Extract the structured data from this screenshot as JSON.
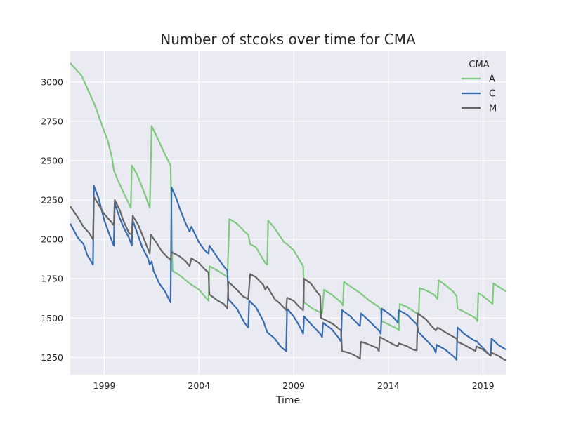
{
  "chart_data": {
    "type": "line",
    "title": "Number of stcoks over time for CMA",
    "xlabel": "Time",
    "ylabel": "",
    "xlim": [
      1997.2,
      2020.2
    ],
    "ylim": [
      1140,
      3200
    ],
    "xticks": [
      1999,
      2004,
      2009,
      2014,
      2019
    ],
    "yticks": [
      1250,
      1500,
      1750,
      2000,
      2250,
      2500,
      2750,
      3000
    ],
    "grid": true,
    "legend": {
      "title": "CMA",
      "placement": "top-right"
    },
    "series": [
      {
        "name": "A",
        "color": "#7fc97f",
        "points": [
          [
            1997.2,
            3120
          ],
          [
            1997.8,
            3040
          ],
          [
            1998.4,
            2880
          ],
          [
            1998.6,
            2820
          ],
          [
            1998.8,
            2750
          ],
          [
            1999.2,
            2620
          ],
          [
            1999.4,
            2520
          ],
          [
            1999.5,
            2440
          ],
          [
            1999.7,
            2380
          ],
          [
            2000.0,
            2300
          ],
          [
            2000.4,
            2200
          ],
          [
            2000.45,
            2470
          ],
          [
            2000.7,
            2420
          ],
          [
            2001.1,
            2300
          ],
          [
            2001.4,
            2200
          ],
          [
            2001.5,
            2720
          ],
          [
            2001.9,
            2620
          ],
          [
            2002.2,
            2540
          ],
          [
            2002.5,
            2470
          ],
          [
            2002.6,
            1800
          ],
          [
            2003.0,
            1770
          ],
          [
            2003.5,
            1720
          ],
          [
            2004.0,
            1680
          ],
          [
            2004.5,
            1610
          ],
          [
            2004.55,
            1830
          ],
          [
            2005.0,
            1800
          ],
          [
            2005.5,
            1760
          ],
          [
            2005.6,
            2130
          ],
          [
            2006.0,
            2100
          ],
          [
            2006.4,
            2050
          ],
          [
            2006.6,
            2030
          ],
          [
            2006.7,
            1970
          ],
          [
            2007.0,
            1950
          ],
          [
            2007.5,
            1850
          ],
          [
            2007.6,
            1840
          ],
          [
            2007.65,
            2120
          ],
          [
            2008.0,
            2070
          ],
          [
            2008.5,
            1980
          ],
          [
            2008.7,
            1965
          ],
          [
            2009.0,
            1930
          ],
          [
            2009.4,
            1850
          ],
          [
            2009.5,
            1830
          ],
          [
            2009.55,
            1600
          ],
          [
            2010.0,
            1560
          ],
          [
            2010.5,
            1530
          ],
          [
            2010.6,
            1680
          ],
          [
            2011.0,
            1650
          ],
          [
            2011.5,
            1600
          ],
          [
            2011.6,
            1580
          ],
          [
            2011.65,
            1730
          ],
          [
            2012.0,
            1700
          ],
          [
            2012.5,
            1660
          ],
          [
            2013.0,
            1610
          ],
          [
            2013.5,
            1570
          ],
          [
            2013.6,
            1550
          ],
          [
            2013.65,
            1480
          ],
          [
            2014.0,
            1460
          ],
          [
            2014.5,
            1430
          ],
          [
            2014.55,
            1420
          ],
          [
            2014.6,
            1590
          ],
          [
            2015.0,
            1570
          ],
          [
            2015.5,
            1530
          ],
          [
            2015.6,
            1520
          ],
          [
            2015.65,
            1690
          ],
          [
            2016.0,
            1675
          ],
          [
            2016.4,
            1650
          ],
          [
            2016.6,
            1620
          ],
          [
            2016.65,
            1740
          ],
          [
            2017.0,
            1710
          ],
          [
            2017.4,
            1670
          ],
          [
            2017.6,
            1640
          ],
          [
            2017.65,
            1560
          ],
          [
            2018.0,
            1540
          ],
          [
            2018.3,
            1520
          ],
          [
            2018.6,
            1500
          ],
          [
            2018.7,
            1480
          ],
          [
            2018.75,
            1660
          ],
          [
            2019.0,
            1640
          ],
          [
            2019.4,
            1600
          ],
          [
            2019.5,
            1590
          ],
          [
            2019.55,
            1720
          ],
          [
            2019.8,
            1700
          ],
          [
            2020.2,
            1670
          ]
        ]
      },
      {
        "name": "C",
        "color": "#386cb0",
        "points": [
          [
            1997.2,
            2100
          ],
          [
            1997.6,
            2010
          ],
          [
            1997.9,
            1970
          ],
          [
            1998.1,
            1900
          ],
          [
            1998.3,
            1860
          ],
          [
            1998.4,
            1840
          ],
          [
            1998.45,
            2340
          ],
          [
            1998.7,
            2260
          ],
          [
            1999.0,
            2120
          ],
          [
            1999.3,
            2020
          ],
          [
            1999.5,
            1960
          ],
          [
            1999.55,
            2230
          ],
          [
            1999.8,
            2140
          ],
          [
            2000.0,
            2080
          ],
          [
            2000.3,
            2010
          ],
          [
            2000.45,
            1960
          ],
          [
            2000.5,
            2120
          ],
          [
            2000.8,
            2020
          ],
          [
            2001.0,
            1950
          ],
          [
            2001.3,
            1880
          ],
          [
            2001.4,
            1840
          ],
          [
            2001.5,
            1860
          ],
          [
            2001.6,
            1800
          ],
          [
            2001.9,
            1720
          ],
          [
            2002.2,
            1670
          ],
          [
            2002.5,
            1600
          ],
          [
            2002.55,
            2330
          ],
          [
            2002.8,
            2260
          ],
          [
            2003.0,
            2190
          ],
          [
            2003.3,
            2100
          ],
          [
            2003.5,
            2050
          ],
          [
            2003.6,
            2080
          ],
          [
            2004.0,
            1980
          ],
          [
            2004.3,
            1930
          ],
          [
            2004.5,
            1910
          ],
          [
            2004.55,
            1960
          ],
          [
            2005.0,
            1880
          ],
          [
            2005.3,
            1830
          ],
          [
            2005.5,
            1800
          ],
          [
            2005.55,
            1620
          ],
          [
            2006.0,
            1560
          ],
          [
            2006.4,
            1470
          ],
          [
            2006.6,
            1440
          ],
          [
            2006.65,
            1610
          ],
          [
            2007.0,
            1570
          ],
          [
            2007.4,
            1480
          ],
          [
            2007.6,
            1410
          ],
          [
            2008.0,
            1370
          ],
          [
            2008.3,
            1320
          ],
          [
            2008.6,
            1290
          ],
          [
            2008.65,
            1560
          ],
          [
            2009.0,
            1510
          ],
          [
            2009.3,
            1450
          ],
          [
            2009.5,
            1400
          ],
          [
            2009.55,
            1510
          ],
          [
            2010.0,
            1450
          ],
          [
            2010.4,
            1400
          ],
          [
            2010.5,
            1380
          ],
          [
            2010.55,
            1470
          ],
          [
            2011.0,
            1430
          ],
          [
            2011.4,
            1370
          ],
          [
            2011.5,
            1350
          ],
          [
            2011.55,
            1550
          ],
          [
            2012.0,
            1510
          ],
          [
            2012.4,
            1460
          ],
          [
            2012.5,
            1450
          ],
          [
            2012.55,
            1530
          ],
          [
            2013.0,
            1480
          ],
          [
            2013.5,
            1420
          ],
          [
            2013.6,
            1400
          ],
          [
            2013.65,
            1560
          ],
          [
            2014.0,
            1530
          ],
          [
            2014.3,
            1500
          ],
          [
            2014.5,
            1470
          ],
          [
            2014.55,
            1550
          ],
          [
            2015.0,
            1520
          ],
          [
            2015.5,
            1460
          ],
          [
            2015.6,
            1410
          ],
          [
            2016.0,
            1360
          ],
          [
            2016.4,
            1310
          ],
          [
            2016.5,
            1280
          ],
          [
            2016.55,
            1330
          ],
          [
            2017.0,
            1300
          ],
          [
            2017.5,
            1250
          ],
          [
            2017.6,
            1235
          ],
          [
            2017.65,
            1440
          ],
          [
            2018.0,
            1400
          ],
          [
            2018.5,
            1360
          ],
          [
            2018.7,
            1350
          ],
          [
            2018.75,
            1340
          ],
          [
            2019.0,
            1310
          ],
          [
            2019.3,
            1270
          ],
          [
            2019.4,
            1260
          ],
          [
            2019.45,
            1370
          ],
          [
            2019.8,
            1330
          ],
          [
            2020.2,
            1300
          ]
        ]
      },
      {
        "name": "M",
        "color": "#666666",
        "points": [
          [
            1997.2,
            2210
          ],
          [
            1997.6,
            2140
          ],
          [
            1997.9,
            2080
          ],
          [
            1998.2,
            2040
          ],
          [
            1998.4,
            2000
          ],
          [
            1998.45,
            2270
          ],
          [
            1998.8,
            2200
          ],
          [
            1999.0,
            2160
          ],
          [
            1999.3,
            2120
          ],
          [
            1999.5,
            2090
          ],
          [
            1999.55,
            2250
          ],
          [
            1999.8,
            2190
          ],
          [
            2000.0,
            2120
          ],
          [
            2000.3,
            2040
          ],
          [
            2000.45,
            2030
          ],
          [
            2000.5,
            2150
          ],
          [
            2000.8,
            2090
          ],
          [
            2001.1,
            2000
          ],
          [
            2001.4,
            1910
          ],
          [
            2001.45,
            2030
          ],
          [
            2001.8,
            1970
          ],
          [
            2002.0,
            1930
          ],
          [
            2002.3,
            1890
          ],
          [
            2002.5,
            1870
          ],
          [
            2002.55,
            1920
          ],
          [
            2003.0,
            1890
          ],
          [
            2003.3,
            1860
          ],
          [
            2003.5,
            1830
          ],
          [
            2003.6,
            1880
          ],
          [
            2004.0,
            1850
          ],
          [
            2004.3,
            1810
          ],
          [
            2004.5,
            1790
          ],
          [
            2004.55,
            1650
          ],
          [
            2005.0,
            1610
          ],
          [
            2005.3,
            1590
          ],
          [
            2005.5,
            1560
          ],
          [
            2005.55,
            1730
          ],
          [
            2006.0,
            1680
          ],
          [
            2006.3,
            1640
          ],
          [
            2006.6,
            1620
          ],
          [
            2006.7,
            1780
          ],
          [
            2007.0,
            1760
          ],
          [
            2007.4,
            1710
          ],
          [
            2007.5,
            1680
          ],
          [
            2007.6,
            1700
          ],
          [
            2008.0,
            1620
          ],
          [
            2008.3,
            1590
          ],
          [
            2008.6,
            1550
          ],
          [
            2008.65,
            1630
          ],
          [
            2009.0,
            1610
          ],
          [
            2009.3,
            1570
          ],
          [
            2009.5,
            1550
          ],
          [
            2009.55,
            1750
          ],
          [
            2009.9,
            1720
          ],
          [
            2010.2,
            1670
          ],
          [
            2010.4,
            1640
          ],
          [
            2010.45,
            1500
          ],
          [
            2010.8,
            1480
          ],
          [
            2011.1,
            1460
          ],
          [
            2011.4,
            1430
          ],
          [
            2011.5,
            1420
          ],
          [
            2011.55,
            1290
          ],
          [
            2011.9,
            1280
          ],
          [
            2012.1,
            1270
          ],
          [
            2012.4,
            1250
          ],
          [
            2012.5,
            1240
          ],
          [
            2012.55,
            1350
          ],
          [
            2012.8,
            1340
          ],
          [
            2013.0,
            1330
          ],
          [
            2013.4,
            1310
          ],
          [
            2013.5,
            1290
          ],
          [
            2013.55,
            1380
          ],
          [
            2014.0,
            1350
          ],
          [
            2014.3,
            1330
          ],
          [
            2014.5,
            1320
          ],
          [
            2014.55,
            1340
          ],
          [
            2015.0,
            1320
          ],
          [
            2015.3,
            1300
          ],
          [
            2015.5,
            1295
          ],
          [
            2015.55,
            1530
          ],
          [
            2016.0,
            1490
          ],
          [
            2016.2,
            1460
          ],
          [
            2016.5,
            1420
          ],
          [
            2016.6,
            1440
          ],
          [
            2017.0,
            1410
          ],
          [
            2017.3,
            1390
          ],
          [
            2017.6,
            1370
          ],
          [
            2017.65,
            1350
          ],
          [
            2018.0,
            1330
          ],
          [
            2018.3,
            1310
          ],
          [
            2018.6,
            1290
          ],
          [
            2018.65,
            1320
          ],
          [
            2019.0,
            1300
          ],
          [
            2019.4,
            1260
          ],
          [
            2019.45,
            1280
          ],
          [
            2019.8,
            1260
          ],
          [
            2020.2,
            1230
          ]
        ]
      }
    ]
  }
}
